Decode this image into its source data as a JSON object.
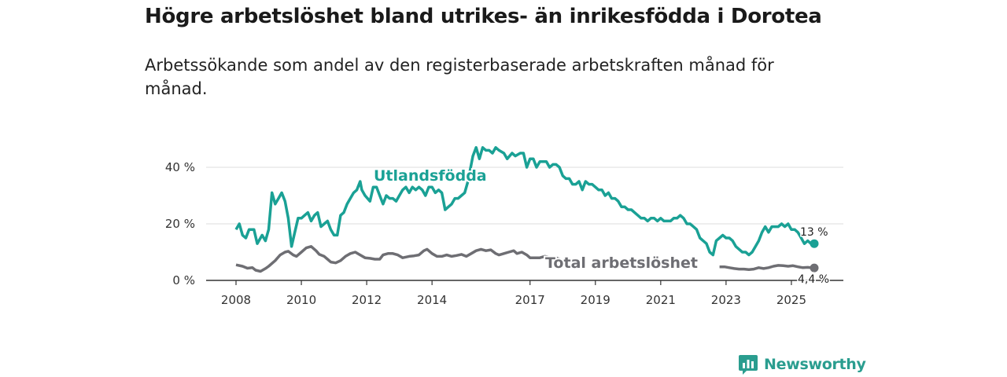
{
  "title": "Högre arbetslöshet bland utrikes- än inrikesfödda i Dorotea",
  "subtitle": "Arbetssökande som andel av den registerbaserade arbetskraften månad för månad.",
  "brand": {
    "name": "Newsworthy",
    "icon": "newsworthy-logo-icon"
  },
  "colors": {
    "foreign": "#1aa195",
    "total": "#6e6e73",
    "grid": "#dddddd",
    "axis": "#333333"
  },
  "chart_data": {
    "type": "line",
    "title": "Högre arbetslöshet bland utrikes- än inrikesfödda i Dorotea",
    "xlabel": "",
    "ylabel": "",
    "xlim": [
      2008,
      2026.4
    ],
    "ylim": [
      0,
      45
    ],
    "y_ticks": [
      0,
      20,
      40
    ],
    "y_tick_labels": [
      "0 %",
      "20 %",
      "40 %"
    ],
    "x_ticks": [
      2008,
      2010,
      2012,
      2014,
      2017,
      2019,
      2021,
      2023,
      2025
    ],
    "x_tick_labels": [
      "2008",
      "2010",
      "2012",
      "2014",
      "2017",
      "2019",
      "2021",
      "2023",
      "2025"
    ],
    "grid": true,
    "series": [
      {
        "name": "Utlandsfödda",
        "label": "Utlandsfödda",
        "end_label": "13 %",
        "points": [
          [
            2008.0,
            18
          ],
          [
            2008.1,
            20
          ],
          [
            2008.2,
            16
          ],
          [
            2008.3,
            15
          ],
          [
            2008.4,
            18
          ],
          [
            2008.55,
            18
          ],
          [
            2008.65,
            13
          ],
          [
            2008.8,
            16
          ],
          [
            2008.9,
            14
          ],
          [
            2009.0,
            18
          ],
          [
            2009.1,
            31
          ],
          [
            2009.2,
            27
          ],
          [
            2009.3,
            29
          ],
          [
            2009.4,
            31
          ],
          [
            2009.5,
            28
          ],
          [
            2009.6,
            22
          ],
          [
            2009.7,
            12
          ],
          [
            2009.8,
            17
          ],
          [
            2009.9,
            22
          ],
          [
            2010.0,
            22
          ],
          [
            2010.1,
            23
          ],
          [
            2010.2,
            24
          ],
          [
            2010.3,
            21
          ],
          [
            2010.4,
            23
          ],
          [
            2010.5,
            24
          ],
          [
            2010.6,
            19
          ],
          [
            2010.7,
            20
          ],
          [
            2010.8,
            21
          ],
          [
            2010.9,
            18
          ],
          [
            2011.0,
            16
          ],
          [
            2011.1,
            16
          ],
          [
            2011.2,
            23
          ],
          [
            2011.3,
            24
          ],
          [
            2011.4,
            27
          ],
          [
            2011.5,
            29
          ],
          [
            2011.6,
            31
          ],
          [
            2011.7,
            32
          ],
          [
            2011.8,
            35
          ],
          [
            2011.85,
            32
          ],
          [
            2011.95,
            30
          ],
          [
            2012.1,
            28
          ],
          [
            2012.2,
            33
          ],
          [
            2012.3,
            33
          ],
          [
            2012.4,
            30
          ],
          [
            2012.5,
            27
          ],
          [
            2012.6,
            30
          ],
          [
            2012.7,
            29
          ],
          [
            2012.8,
            29
          ],
          [
            2012.9,
            28
          ],
          [
            2013.0,
            30
          ],
          [
            2013.1,
            32
          ],
          [
            2013.2,
            33
          ],
          [
            2013.3,
            31
          ],
          [
            2013.4,
            33
          ],
          [
            2013.5,
            32
          ],
          [
            2013.6,
            33
          ],
          [
            2013.7,
            32
          ],
          [
            2013.8,
            30
          ],
          [
            2013.9,
            33
          ],
          [
            2014.0,
            33
          ],
          [
            2014.1,
            31
          ],
          [
            2014.2,
            32
          ],
          [
            2014.3,
            31
          ],
          [
            2014.4,
            25
          ],
          [
            2014.5,
            26
          ],
          [
            2014.6,
            27
          ],
          [
            2014.7,
            29
          ],
          [
            2014.8,
            29
          ],
          [
            2014.9,
            30
          ],
          [
            2015.0,
            31
          ],
          [
            2015.1,
            35
          ],
          [
            2015.25,
            44
          ],
          [
            2015.35,
            47
          ],
          [
            2015.45,
            43
          ],
          [
            2015.55,
            47
          ],
          [
            2015.65,
            46
          ],
          [
            2015.75,
            46
          ],
          [
            2015.85,
            45
          ],
          [
            2015.95,
            47
          ],
          [
            2016.05,
            46
          ],
          [
            2016.2,
            45
          ],
          [
            2016.3,
            43
          ],
          [
            2016.45,
            45
          ],
          [
            2016.55,
            44
          ],
          [
            2016.7,
            45
          ],
          [
            2016.8,
            45
          ],
          [
            2016.9,
            40
          ],
          [
            2017.0,
            43
          ],
          [
            2017.1,
            43
          ],
          [
            2017.2,
            40
          ],
          [
            2017.3,
            42
          ],
          [
            2017.4,
            42
          ],
          [
            2017.5,
            42
          ],
          [
            2017.6,
            40
          ],
          [
            2017.7,
            41
          ],
          [
            2017.8,
            41
          ],
          [
            2017.9,
            40
          ],
          [
            2018.0,
            37
          ],
          [
            2018.1,
            36
          ],
          [
            2018.2,
            36
          ],
          [
            2018.3,
            34
          ],
          [
            2018.4,
            34
          ],
          [
            2018.5,
            35
          ],
          [
            2018.6,
            32
          ],
          [
            2018.7,
            35
          ],
          [
            2018.8,
            34
          ],
          [
            2018.9,
            34
          ],
          [
            2019.0,
            33
          ],
          [
            2019.1,
            32
          ],
          [
            2019.2,
            32
          ],
          [
            2019.3,
            30
          ],
          [
            2019.4,
            31
          ],
          [
            2019.5,
            29
          ],
          [
            2019.6,
            29
          ],
          [
            2019.7,
            28
          ],
          [
            2019.8,
            26
          ],
          [
            2019.9,
            26
          ],
          [
            2020.0,
            25
          ],
          [
            2020.1,
            25
          ],
          [
            2020.2,
            24
          ],
          [
            2020.3,
            23
          ],
          [
            2020.4,
            22
          ],
          [
            2020.5,
            22
          ],
          [
            2020.6,
            21
          ],
          [
            2020.7,
            22
          ],
          [
            2020.8,
            22
          ],
          [
            2020.9,
            21
          ],
          [
            2021.0,
            22
          ],
          [
            2021.1,
            21
          ],
          [
            2021.2,
            21
          ],
          [
            2021.3,
            21
          ],
          [
            2021.4,
            22
          ],
          [
            2021.5,
            22
          ],
          [
            2021.6,
            23
          ],
          [
            2021.7,
            22
          ],
          [
            2021.8,
            20
          ],
          [
            2021.9,
            20
          ],
          [
            2022.0,
            19
          ],
          [
            2022.1,
            18
          ],
          [
            2022.2,
            15
          ],
          [
            2022.3,
            14
          ],
          [
            2022.4,
            13
          ],
          [
            2022.5,
            10
          ],
          [
            2022.6,
            9
          ],
          [
            2022.7,
            14
          ],
          [
            2022.8,
            15
          ],
          [
            2022.9,
            16
          ],
          [
            2023.0,
            15
          ],
          [
            2023.1,
            15
          ],
          [
            2023.2,
            14
          ],
          [
            2023.3,
            12
          ],
          [
            2023.4,
            11
          ],
          [
            2023.5,
            10
          ],
          [
            2023.6,
            10
          ],
          [
            2023.7,
            9
          ],
          [
            2023.8,
            10
          ],
          [
            2023.9,
            12
          ],
          [
            2024.0,
            14
          ],
          [
            2024.1,
            17
          ],
          [
            2024.2,
            19
          ],
          [
            2024.3,
            17
          ],
          [
            2024.4,
            19
          ],
          [
            2024.5,
            19
          ],
          [
            2024.6,
            19
          ],
          [
            2024.7,
            20
          ],
          [
            2024.8,
            19
          ],
          [
            2024.9,
            20
          ],
          [
            2025.0,
            18
          ],
          [
            2025.1,
            18
          ],
          [
            2025.2,
            17
          ],
          [
            2025.3,
            15
          ],
          [
            2025.4,
            13
          ],
          [
            2025.5,
            14
          ],
          [
            2025.6,
            13
          ],
          [
            2025.7,
            13
          ]
        ]
      },
      {
        "name": "Total arbetslöshet",
        "label": "Total arbetslöshet",
        "end_label": "4,4 %",
        "points": [
          [
            2008.0,
            5.5
          ],
          [
            2008.2,
            5
          ],
          [
            2008.35,
            4.3
          ],
          [
            2008.5,
            4.5
          ],
          [
            2008.6,
            3.6
          ],
          [
            2008.75,
            3.2
          ],
          [
            2008.9,
            4.2
          ],
          [
            2009.0,
            5
          ],
          [
            2009.2,
            7
          ],
          [
            2009.35,
            9
          ],
          [
            2009.5,
            10
          ],
          [
            2009.6,
            10.3
          ],
          [
            2009.75,
            9
          ],
          [
            2009.85,
            8.5
          ],
          [
            2010.0,
            10
          ],
          [
            2010.15,
            11.5
          ],
          [
            2010.3,
            12
          ],
          [
            2010.45,
            10.5
          ],
          [
            2010.55,
            9.2
          ],
          [
            2010.7,
            8.5
          ],
          [
            2010.8,
            7.5
          ],
          [
            2010.9,
            6.5
          ],
          [
            2011.05,
            6.2
          ],
          [
            2011.2,
            7
          ],
          [
            2011.35,
            8.5
          ],
          [
            2011.5,
            9.5
          ],
          [
            2011.65,
            10
          ],
          [
            2011.8,
            9
          ],
          [
            2011.95,
            8
          ],
          [
            2012.1,
            7.8
          ],
          [
            2012.25,
            7.5
          ],
          [
            2012.4,
            7.5
          ],
          [
            2012.5,
            9
          ],
          [
            2012.65,
            9.5
          ],
          [
            2012.8,
            9.5
          ],
          [
            2012.95,
            9
          ],
          [
            2013.1,
            8
          ],
          [
            2013.3,
            8.5
          ],
          [
            2013.45,
            8.7
          ],
          [
            2013.6,
            9
          ],
          [
            2013.75,
            10.5
          ],
          [
            2013.85,
            11
          ],
          [
            2014.0,
            9.5
          ],
          [
            2014.15,
            8.5
          ],
          [
            2014.3,
            8.5
          ],
          [
            2014.45,
            9
          ],
          [
            2014.6,
            8.5
          ],
          [
            2014.75,
            8.8
          ],
          [
            2014.9,
            9.2
          ],
          [
            2015.05,
            8.5
          ],
          [
            2015.2,
            9.5
          ],
          [
            2015.35,
            10.5
          ],
          [
            2015.5,
            11
          ],
          [
            2015.65,
            10.5
          ],
          [
            2015.8,
            10.8
          ],
          [
            2015.95,
            9.5
          ],
          [
            2016.05,
            9
          ],
          [
            2016.2,
            9.5
          ],
          [
            2016.35,
            10
          ],
          [
            2016.5,
            10.5
          ],
          [
            2016.6,
            9.5
          ],
          [
            2016.75,
            10
          ],
          [
            2016.9,
            9
          ],
          [
            2017.0,
            8
          ],
          [
            2017.15,
            8
          ],
          [
            2017.3,
            8
          ],
          [
            2017.45,
            8.5
          ],
          [
            2017.6,
            8.2
          ],
          [
            2017.8,
            8
          ],
          [
            2018.0,
            7
          ]
        ],
        "points_tail": [
          [
            2022.8,
            4.8
          ],
          [
            2022.95,
            4.8
          ],
          [
            2023.1,
            4.5
          ],
          [
            2023.25,
            4.2
          ],
          [
            2023.4,
            4
          ],
          [
            2023.55,
            4
          ],
          [
            2023.7,
            3.8
          ],
          [
            2023.85,
            4
          ],
          [
            2024.0,
            4.5
          ],
          [
            2024.15,
            4.2
          ],
          [
            2024.3,
            4.5
          ],
          [
            2024.45,
            5
          ],
          [
            2024.6,
            5.3
          ],
          [
            2024.75,
            5.2
          ],
          [
            2024.9,
            5
          ],
          [
            2025.05,
            5.2
          ],
          [
            2025.2,
            4.8
          ],
          [
            2025.35,
            4.5
          ],
          [
            2025.5,
            4.6
          ],
          [
            2025.7,
            4.4
          ]
        ]
      }
    ]
  }
}
